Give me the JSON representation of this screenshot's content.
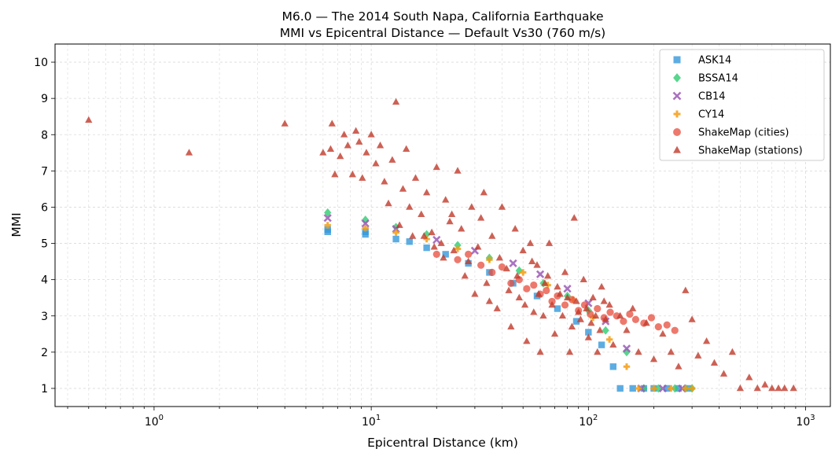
{
  "chart_data": {
    "type": "scatter",
    "title": "M6.0 — The 2014 South Napa, California Earthquake",
    "subtitle": "MMI vs Epicentral Distance — Default Vs30 (760 m/s)",
    "xlabel": "Epicentral Distance (km)",
    "ylabel": "MMI",
    "xscale": "log",
    "xlim": [
      0.35,
      1300
    ],
    "ylim": [
      0.5,
      10.5
    ],
    "x_ticks": [
      {
        "value": 1,
        "base": "10",
        "exp": "0"
      },
      {
        "value": 10,
        "base": "10",
        "exp": "1"
      },
      {
        "value": 100,
        "base": "10",
        "exp": "2"
      },
      {
        "value": 1000,
        "base": "10",
        "exp": "3"
      }
    ],
    "y_ticks": [
      1,
      2,
      3,
      4,
      5,
      6,
      7,
      8,
      9,
      10
    ],
    "grid": true,
    "legend_position": "upper-right",
    "series": [
      {
        "name": "ASK14",
        "marker": "square",
        "color": "#3498db",
        "points": [
          [
            6.3,
            5.32
          ],
          [
            6.3,
            5.38
          ],
          [
            9.4,
            5.25
          ],
          [
            9.4,
            5.32
          ],
          [
            13,
            5.12
          ],
          [
            15,
            5.05
          ],
          [
            18,
            4.88
          ],
          [
            22,
            4.7
          ],
          [
            28,
            4.45
          ],
          [
            35,
            4.2
          ],
          [
            45,
            3.9
          ],
          [
            58,
            3.55
          ],
          [
            72,
            3.2
          ],
          [
            88,
            2.85
          ],
          [
            100,
            2.55
          ],
          [
            115,
            2.2
          ],
          [
            130,
            1.6
          ],
          [
            140,
            1.0
          ],
          [
            160,
            1.0
          ],
          [
            180,
            1.0
          ],
          [
            200,
            1.0
          ],
          [
            230,
            1.0
          ],
          [
            260,
            1.0
          ],
          [
            290,
            1.0
          ]
        ]
      },
      {
        "name": "BSSA14",
        "marker": "diamond",
        "color": "#2ecc71",
        "points": [
          [
            6.3,
            5.85
          ],
          [
            9.4,
            5.65
          ],
          [
            13,
            5.45
          ],
          [
            18,
            5.25
          ],
          [
            25,
            4.95
          ],
          [
            35,
            4.6
          ],
          [
            48,
            4.25
          ],
          [
            62,
            3.9
          ],
          [
            80,
            3.55
          ],
          [
            100,
            3.15
          ],
          [
            120,
            2.6
          ],
          [
            150,
            2.0
          ],
          [
            180,
            1.0
          ],
          [
            210,
            1.0
          ],
          [
            250,
            1.0
          ],
          [
            280,
            1.0
          ],
          [
            300,
            1.0
          ]
        ]
      },
      {
        "name": "CB14",
        "marker": "x",
        "color": "#9b59b6",
        "points": [
          [
            6.3,
            5.7
          ],
          [
            9.4,
            5.55
          ],
          [
            13,
            5.4
          ],
          [
            20,
            5.1
          ],
          [
            30,
            4.8
          ],
          [
            45,
            4.45
          ],
          [
            60,
            4.15
          ],
          [
            80,
            3.75
          ],
          [
            100,
            3.35
          ],
          [
            120,
            2.85
          ],
          [
            150,
            2.1
          ],
          [
            175,
            1.0
          ],
          [
            220,
            1.0
          ],
          [
            270,
            1.0
          ]
        ]
      },
      {
        "name": "CY14",
        "marker": "plus",
        "color": "#f39c12",
        "points": [
          [
            6.3,
            5.5
          ],
          [
            9.4,
            5.42
          ],
          [
            13,
            5.3
          ],
          [
            18,
            5.12
          ],
          [
            25,
            4.85
          ],
          [
            35,
            4.55
          ],
          [
            50,
            4.2
          ],
          [
            65,
            3.85
          ],
          [
            85,
            3.45
          ],
          [
            105,
            2.95
          ],
          [
            125,
            2.35
          ],
          [
            150,
            1.6
          ],
          [
            170,
            1.0
          ],
          [
            200,
            1.0
          ],
          [
            240,
            1.0
          ],
          [
            280,
            1.0
          ],
          [
            300,
            1.0
          ]
        ]
      },
      {
        "name": "ShakeMap (cities)",
        "marker": "circle",
        "color": "#e74c3c",
        "points": [
          [
            20,
            4.7
          ],
          [
            25,
            4.55
          ],
          [
            28,
            4.7
          ],
          [
            32,
            4.4
          ],
          [
            36,
            4.2
          ],
          [
            40,
            4.35
          ],
          [
            44,
            3.9
          ],
          [
            48,
            4.0
          ],
          [
            52,
            3.75
          ],
          [
            56,
            3.85
          ],
          [
            60,
            3.6
          ],
          [
            64,
            3.7
          ],
          [
            68,
            3.4
          ],
          [
            72,
            3.55
          ],
          [
            78,
            3.3
          ],
          [
            84,
            3.45
          ],
          [
            90,
            3.15
          ],
          [
            96,
            3.3
          ],
          [
            102,
            3.05
          ],
          [
            110,
            3.2
          ],
          [
            118,
            2.95
          ],
          [
            126,
            3.1
          ],
          [
            135,
            3.0
          ],
          [
            145,
            2.85
          ],
          [
            155,
            3.05
          ],
          [
            165,
            2.9
          ],
          [
            180,
            2.8
          ],
          [
            195,
            2.95
          ],
          [
            210,
            2.7
          ],
          [
            230,
            2.75
          ],
          [
            250,
            2.6
          ]
        ]
      },
      {
        "name": "ShakeMap (stations)",
        "marker": "triangle",
        "color": "#c0392b",
        "points": [
          [
            0.5,
            8.4
          ],
          [
            1.45,
            7.5
          ],
          [
            4.0,
            8.3
          ],
          [
            6.0,
            7.5
          ],
          [
            6.6,
            8.3
          ],
          [
            6.5,
            7.6
          ],
          [
            6.8,
            6.9
          ],
          [
            7.2,
            7.4
          ],
          [
            7.5,
            8.0
          ],
          [
            7.8,
            7.7
          ],
          [
            8.2,
            6.9
          ],
          [
            8.5,
            8.1
          ],
          [
            8.8,
            7.8
          ],
          [
            9.1,
            6.8
          ],
          [
            9.5,
            7.5
          ],
          [
            10.0,
            8.0
          ],
          [
            10.5,
            7.2
          ],
          [
            11.0,
            7.7
          ],
          [
            11.5,
            6.7
          ],
          [
            12.0,
            6.1
          ],
          [
            12.5,
            7.3
          ],
          [
            13.0,
            8.9
          ],
          [
            13.5,
            5.5
          ],
          [
            14.0,
            6.5
          ],
          [
            14.5,
            7.6
          ],
          [
            15.0,
            6.0
          ],
          [
            15.5,
            5.2
          ],
          [
            16.0,
            6.8
          ],
          [
            17.0,
            5.8
          ],
          [
            18.0,
            6.4
          ],
          [
            19.0,
            5.3
          ],
          [
            20.0,
            7.1
          ],
          [
            21.0,
            5.0
          ],
          [
            22.0,
            6.2
          ],
          [
            23.0,
            5.6
          ],
          [
            24.0,
            4.8
          ],
          [
            25.0,
            7.0
          ],
          [
            26.0,
            5.4
          ],
          [
            28.0,
            4.5
          ],
          [
            29.0,
            6.0
          ],
          [
            30.0,
            3.6
          ],
          [
            32.0,
            5.7
          ],
          [
            33.0,
            6.4
          ],
          [
            34.0,
            3.9
          ],
          [
            36.0,
            5.2
          ],
          [
            38.0,
            3.2
          ],
          [
            40.0,
            6.0
          ],
          [
            42.0,
            4.3
          ],
          [
            44.0,
            2.7
          ],
          [
            46.0,
            5.4
          ],
          [
            48.0,
            3.5
          ],
          [
            50.0,
            4.8
          ],
          [
            52.0,
            2.3
          ],
          [
            54.0,
            5.0
          ],
          [
            56.0,
            3.1
          ],
          [
            58.0,
            4.4
          ],
          [
            60.0,
            2.0
          ],
          [
            63.0,
            3.9
          ],
          [
            66.0,
            5.0
          ],
          [
            70.0,
            2.5
          ],
          [
            74.0,
            3.6
          ],
          [
            78.0,
            4.2
          ],
          [
            82.0,
            2.0
          ],
          [
            86.0,
            5.7
          ],
          [
            90.0,
            3.1
          ],
          [
            95.0,
            4.0
          ],
          [
            100.0,
            2.4
          ],
          [
            105.0,
            3.5
          ],
          [
            110.0,
            2.0
          ],
          [
            115.0,
            3.8
          ],
          [
            120.0,
            2.9
          ],
          [
            125.0,
            3.3
          ],
          [
            130.0,
            2.2
          ],
          [
            140.0,
            3.0
          ],
          [
            150.0,
            2.6
          ],
          [
            160.0,
            3.2
          ],
          [
            170.0,
            2.0
          ],
          [
            185.0,
            2.8
          ],
          [
            200.0,
            1.8
          ],
          [
            220.0,
            2.5
          ],
          [
            240.0,
            2.0
          ],
          [
            260.0,
            1.6
          ],
          [
            280.0,
            3.7
          ],
          [
            300.0,
            2.9
          ],
          [
            320.0,
            1.9
          ],
          [
            350.0,
            2.3
          ],
          [
            380.0,
            1.7
          ],
          [
            420.0,
            1.4
          ],
          [
            460.0,
            2.0
          ],
          [
            500.0,
            1.0
          ],
          [
            550.0,
            1.3
          ],
          [
            600.0,
            1.0
          ],
          [
            650.0,
            1.1
          ],
          [
            700.0,
            1.0
          ],
          [
            750.0,
            1.0
          ],
          [
            800.0,
            1.0
          ],
          [
            880.0,
            1.0
          ],
          [
            17.5,
            5.2
          ],
          [
            19.5,
            4.9
          ],
          [
            21.5,
            4.6
          ],
          [
            23.5,
            5.8
          ],
          [
            27.0,
            4.1
          ],
          [
            31.0,
            4.9
          ],
          [
            35.0,
            3.4
          ],
          [
            39.0,
            4.6
          ],
          [
            43.0,
            3.7
          ],
          [
            47.0,
            4.1
          ],
          [
            51.0,
            3.3
          ],
          [
            55.0,
            4.5
          ],
          [
            59.0,
            3.6
          ],
          [
            62.0,
            3.0
          ],
          [
            65.0,
            4.1
          ],
          [
            68.0,
            3.3
          ],
          [
            72.0,
            3.8
          ],
          [
            76.0,
            3.0
          ],
          [
            80.0,
            3.5
          ],
          [
            84.0,
            2.7
          ],
          [
            88.0,
            3.4
          ],
          [
            92.0,
            2.9
          ],
          [
            98.0,
            3.2
          ],
          [
            103.0,
            2.8
          ],
          [
            108.0,
            3.0
          ],
          [
            113.0,
            2.6
          ],
          [
            118.0,
            3.4
          ]
        ]
      }
    ]
  }
}
